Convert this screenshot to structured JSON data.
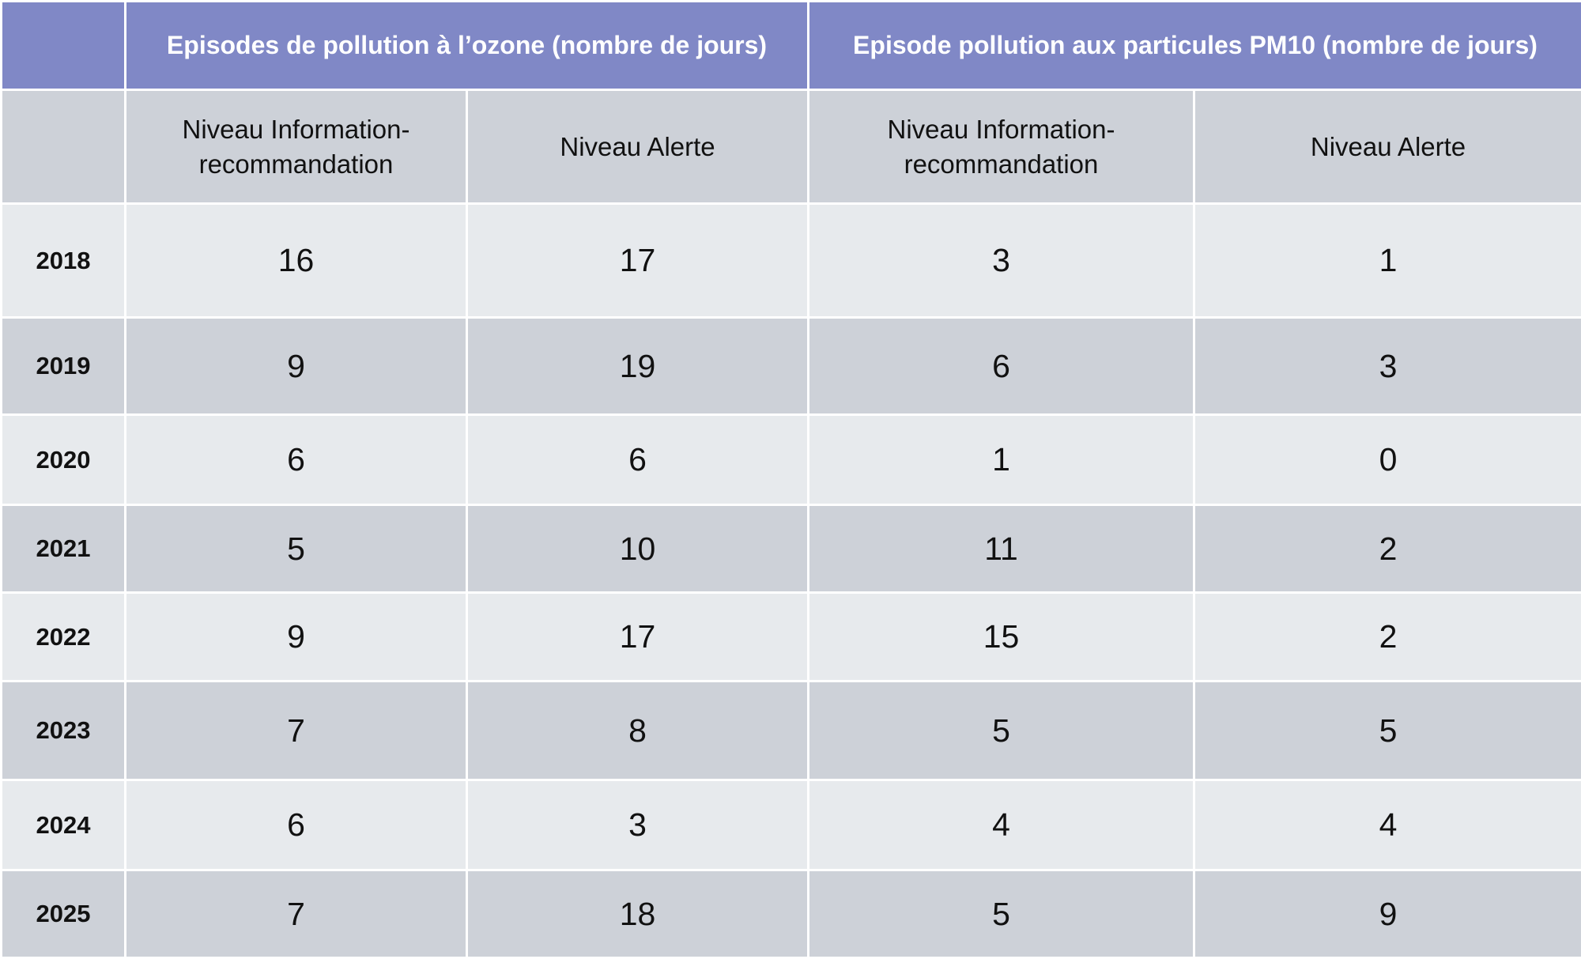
{
  "table": {
    "group_headers": [
      "Episodes de pollution à l’ozone (nombre de jours)",
      "Episode pollution aux particules PM10 (nombre de jours)"
    ],
    "sub_headers": [
      "Niveau Information-recommandation",
      "Niveau Alerte",
      "Niveau Information-recommandation",
      "Niveau Alerte"
    ],
    "rows": [
      [
        2018,
        16,
        17,
        3,
        1
      ],
      [
        2019,
        9,
        19,
        6,
        3
      ],
      [
        2020,
        6,
        6,
        1,
        0
      ],
      [
        2021,
        5,
        10,
        11,
        2
      ],
      [
        2022,
        9,
        17,
        15,
        2
      ],
      [
        2023,
        7,
        8,
        5,
        5
      ],
      [
        2024,
        6,
        3,
        4,
        4
      ],
      [
        2025,
        7,
        18,
        5,
        9
      ]
    ]
  }
}
